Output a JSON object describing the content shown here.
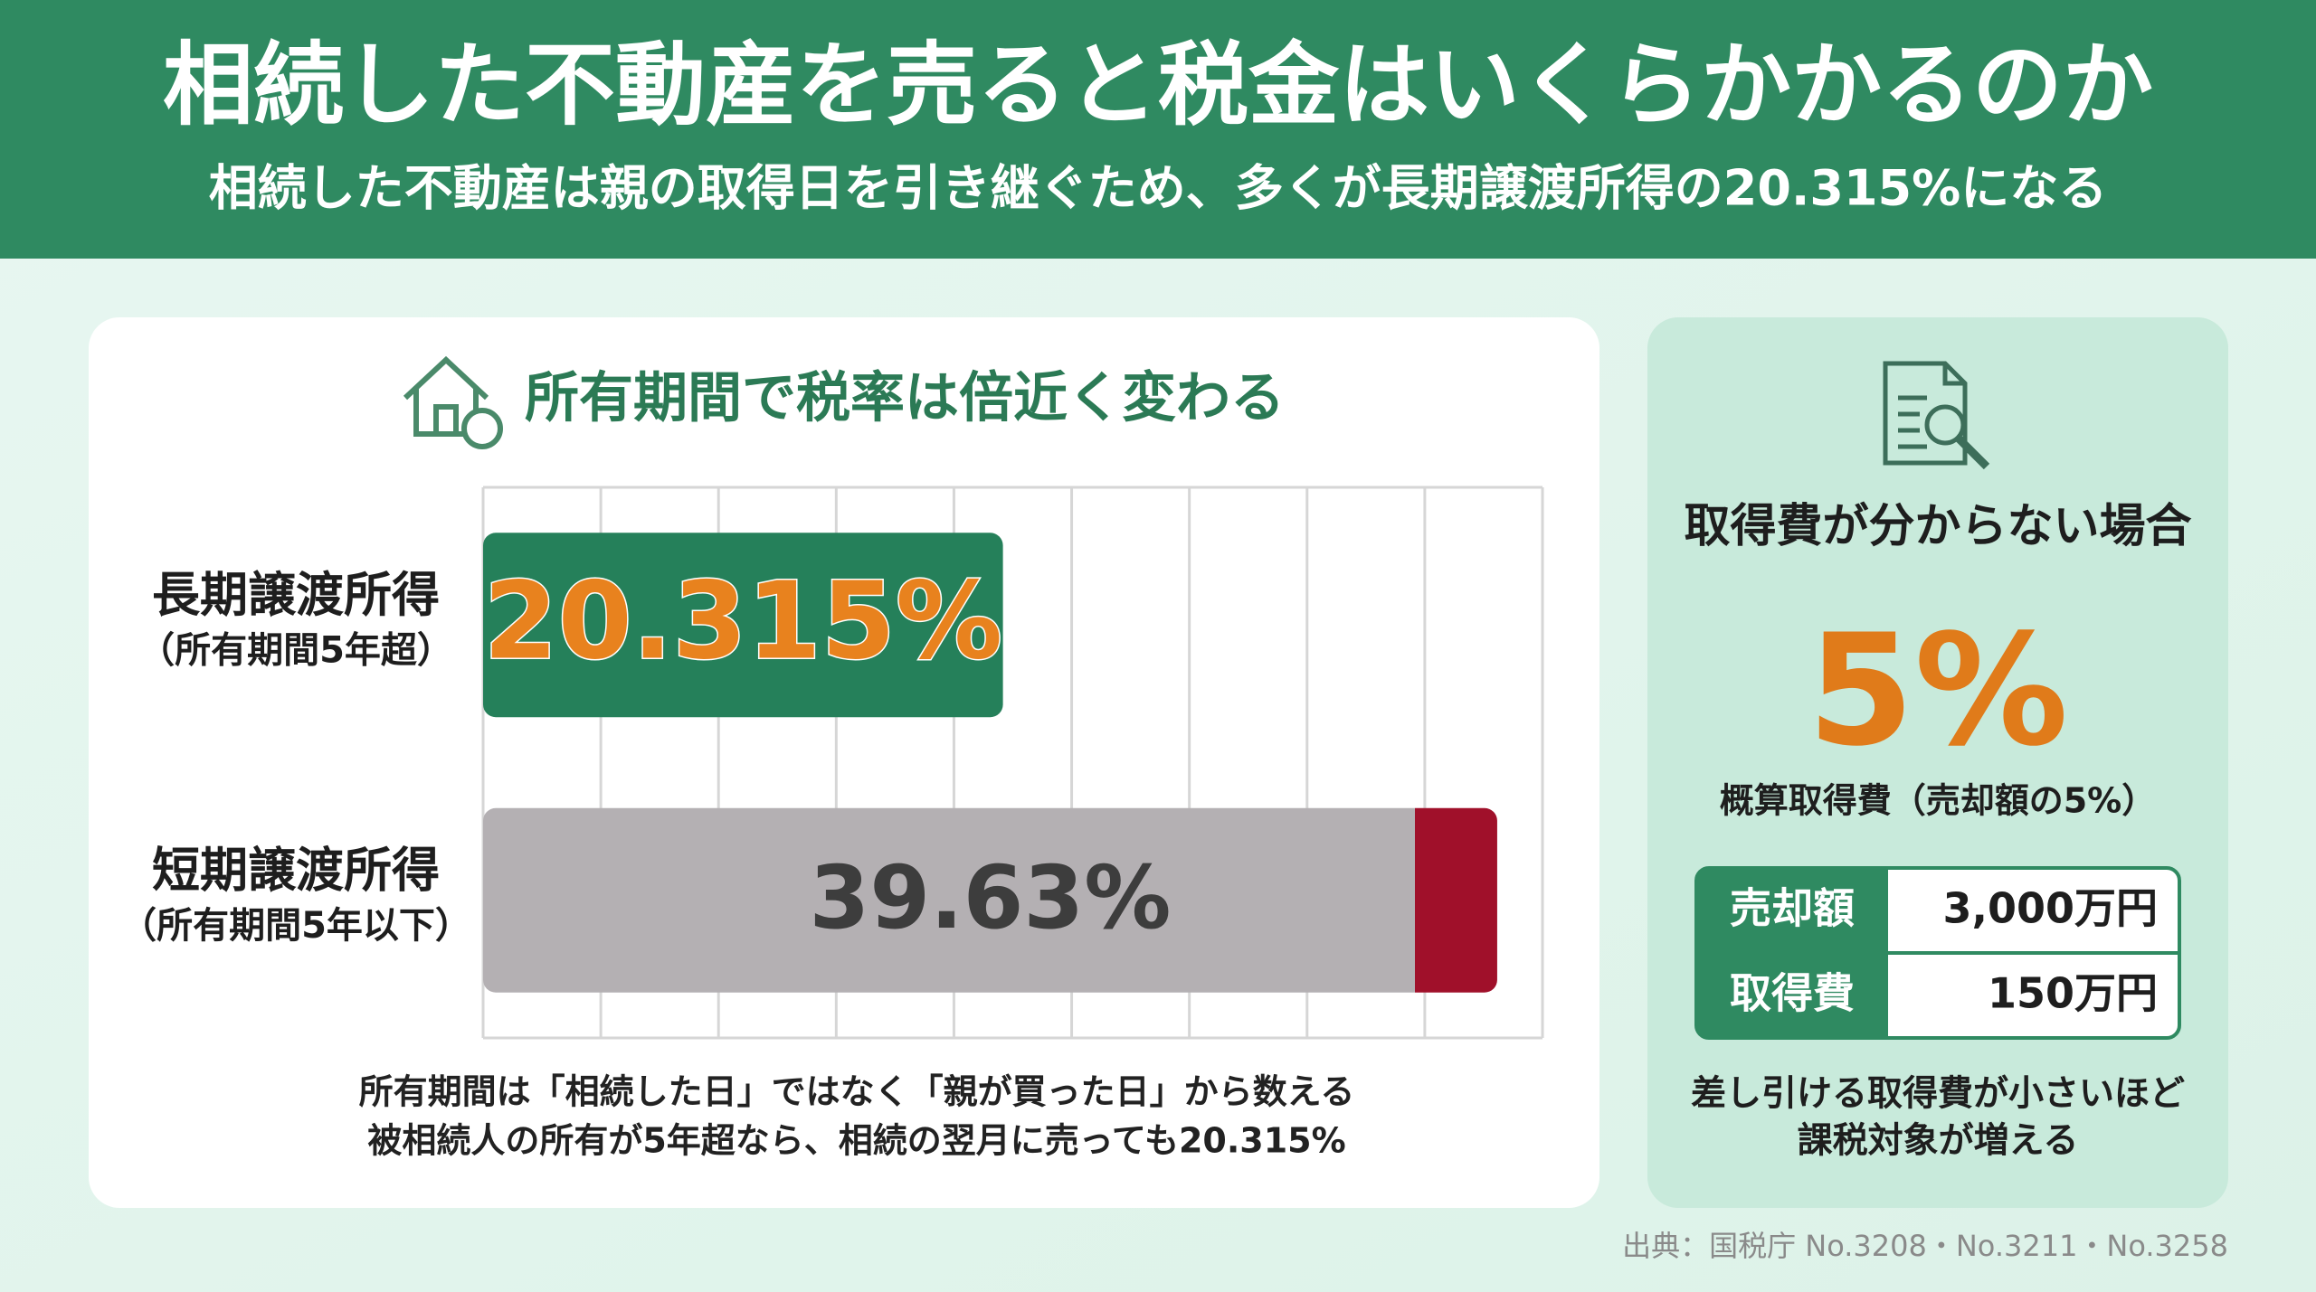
{
  "header": {
    "title": "相続した不動産を売ると税金はいくらかかるのか",
    "subtitle": "相続した不動産は親の取得日を引き継ぐため、多くが長期譲渡所得の20.315%になる"
  },
  "chart_data": {
    "type": "bar",
    "orientation": "horizontal",
    "title": "所有期間で税率は倍近く変わる",
    "categories": [
      "長期譲渡所得",
      "短期譲渡所得"
    ],
    "category_notes": [
      "（所有期間5年超）",
      "（所有期間5年以下）"
    ],
    "values": [
      20.315,
      39.63
    ],
    "value_labels": [
      "20.315%",
      "39.63%"
    ],
    "colors": [
      "#25805a",
      "#b4b0b3"
    ],
    "label_colors": [
      "#e8821e",
      "#3d3d3d"
    ],
    "end_accent_color": "#a0102a",
    "xlim": [
      0,
      41.4
    ],
    "xticks": [
      0,
      4.6,
      9.2,
      13.8,
      18.4,
      23,
      27.6,
      32.2,
      36.8,
      41.4
    ],
    "grid": true,
    "notes": [
      "所有期間は「相続した日」ではなく「親が買った日」から数える",
      "被相続人の所有が5年超なら、相続の翌月に売っても20.315%"
    ]
  },
  "side_panel": {
    "title": "取得費が分からない場合",
    "highlight": "5%",
    "highlight_caption": "概算取得費（売却額の5%）",
    "table": {
      "rows": [
        [
          "売却額",
          "3,000万円"
        ],
        [
          "取得費",
          "150万円"
        ]
      ]
    },
    "notes": [
      "差し引ける取得費が小さいほど",
      "課税対象が増える"
    ]
  },
  "source": "出典：国税庁 No.3208・No.3211・No.3258"
}
